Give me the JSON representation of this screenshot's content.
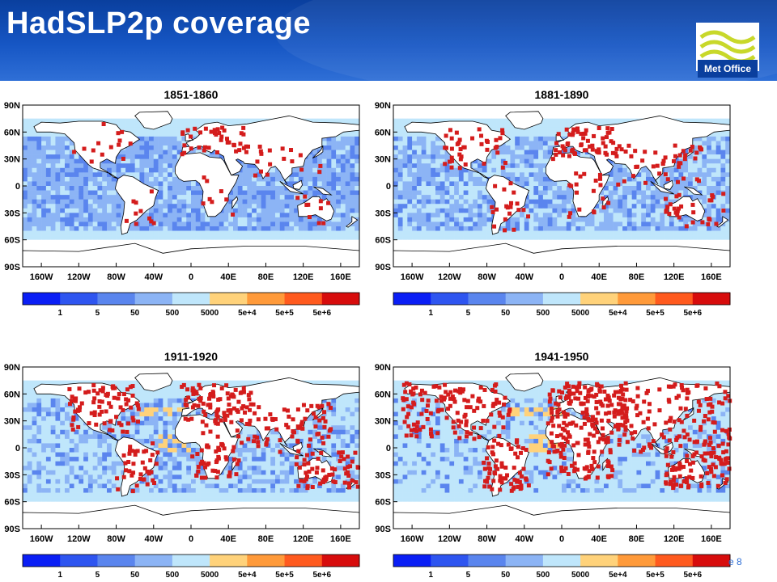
{
  "slide": {
    "title": "HadSLP2p coverage",
    "logo_text": "Met Office",
    "page_label": "e 8"
  },
  "colors": {
    "header_blue": "#0a3f9e",
    "station_red": "#d41c1c",
    "colorbar": [
      "#0a1ef5",
      "#2e55f0",
      "#5a85ee",
      "#8cb4f5",
      "#bfe6fb",
      "#ffd27a",
      "#ff9a3a",
      "#ff5a1e",
      "#d70c0c"
    ]
  },
  "chart_data": [
    {
      "type": "heatmap",
      "title": "1851-1860",
      "x_ticks": [
        "160W",
        "120W",
        "80W",
        "40W",
        "0",
        "40E",
        "80E",
        "120E",
        "160E"
      ],
      "y_ticks": [
        "90N",
        "60N",
        "30N",
        "0",
        "30S",
        "60S",
        "90S"
      ],
      "xlim": [
        -180,
        180
      ],
      "ylim": [
        -90,
        90
      ],
      "colorbar_labels": [
        "1",
        "5",
        "50",
        "500",
        "5000",
        "5e+4",
        "5e+5",
        "5e+6"
      ],
      "station_count_estimate": 110,
      "station_regions": [
        {
          "lon": [
            -125,
            -60
          ],
          "lat": [
            25,
            70
          ],
          "n": 14
        },
        {
          "lon": [
            -10,
            60
          ],
          "lat": [
            35,
            65
          ],
          "n": 40
        },
        {
          "lon": [
            60,
            140
          ],
          "lat": [
            10,
            45
          ],
          "n": 18
        },
        {
          "lon": [
            -70,
            -35
          ],
          "lat": [
            -45,
            5
          ],
          "n": 10
        },
        {
          "lon": [
            10,
            50
          ],
          "lat": [
            -35,
            10
          ],
          "n": 8
        },
        {
          "lon": [
            110,
            155
          ],
          "lat": [
            -45,
            -10
          ],
          "n": 10
        }
      ]
    },
    {
      "type": "heatmap",
      "title": "1881-1890",
      "x_ticks": [
        "160W",
        "120W",
        "80W",
        "40W",
        "0",
        "40E",
        "80E",
        "120E",
        "160E"
      ],
      "y_ticks": [
        "90N",
        "60N",
        "30N",
        "0",
        "30S",
        "60S",
        "90S"
      ],
      "xlim": [
        -180,
        180
      ],
      "ylim": [
        -90,
        90
      ],
      "colorbar_labels": [
        "1",
        "5",
        "50",
        "500",
        "5000",
        "5e+4",
        "5e+5",
        "5e+6"
      ],
      "station_count_estimate": 230,
      "station_regions": [
        {
          "lon": [
            -125,
            -60
          ],
          "lat": [
            20,
            65
          ],
          "n": 40
        },
        {
          "lon": [
            -10,
            60
          ],
          "lat": [
            30,
            65
          ],
          "n": 60
        },
        {
          "lon": [
            60,
            150
          ],
          "lat": [
            0,
            45
          ],
          "n": 45
        },
        {
          "lon": [
            -75,
            -35
          ],
          "lat": [
            -50,
            10
          ],
          "n": 20
        },
        {
          "lon": [
            5,
            50
          ],
          "lat": [
            -35,
            15
          ],
          "n": 20
        },
        {
          "lon": [
            110,
            180
          ],
          "lat": [
            -45,
            -5
          ],
          "n": 30
        }
      ]
    },
    {
      "type": "heatmap",
      "title": "1911-1920",
      "x_ticks": [
        "160W",
        "120W",
        "80W",
        "40W",
        "0",
        "40E",
        "80E",
        "120E",
        "160E"
      ],
      "y_ticks": [
        "90N",
        "60N",
        "30N",
        "0",
        "30S",
        "60S",
        "90S"
      ],
      "xlim": [
        -180,
        180
      ],
      "ylim": [
        -90,
        90
      ],
      "colorbar_labels": [
        "1",
        "5",
        "50",
        "500",
        "5000",
        "5e+4",
        "5e+5",
        "5e+6"
      ],
      "station_count_estimate": 400,
      "station_regions": [
        {
          "lon": [
            -130,
            -55
          ],
          "lat": [
            15,
            70
          ],
          "n": 80
        },
        {
          "lon": [
            -10,
            65
          ],
          "lat": [
            25,
            70
          ],
          "n": 90
        },
        {
          "lon": [
            60,
            150
          ],
          "lat": [
            -5,
            50
          ],
          "n": 70
        },
        {
          "lon": [
            -80,
            -35
          ],
          "lat": [
            -50,
            10
          ],
          "n": 40
        },
        {
          "lon": [
            0,
            55
          ],
          "lat": [
            -35,
            20
          ],
          "n": 50
        },
        {
          "lon": [
            110,
            180
          ],
          "lat": [
            -45,
            -5
          ],
          "n": 60
        }
      ]
    },
    {
      "type": "heatmap",
      "title": "1941-1950",
      "x_ticks": [
        "160W",
        "120W",
        "80W",
        "40W",
        "0",
        "40E",
        "80E",
        "120E",
        "160E"
      ],
      "y_ticks": [
        "90N",
        "60N",
        "30N",
        "0",
        "30S",
        "60S",
        "90S"
      ],
      "xlim": [
        -180,
        180
      ],
      "ylim": [
        -90,
        90
      ],
      "colorbar_labels": [
        "1",
        "5",
        "50",
        "500",
        "5000",
        "5e+4",
        "5e+5",
        "5e+6"
      ],
      "station_count_estimate": 650,
      "station_regions": [
        {
          "lon": [
            -170,
            -55
          ],
          "lat": [
            10,
            72
          ],
          "n": 130
        },
        {
          "lon": [
            -15,
            70
          ],
          "lat": [
            20,
            72
          ],
          "n": 150
        },
        {
          "lon": [
            60,
            180
          ],
          "lat": [
            -5,
            72
          ],
          "n": 130
        },
        {
          "lon": [
            -85,
            -35
          ],
          "lat": [
            -50,
            10
          ],
          "n": 70
        },
        {
          "lon": [
            -15,
            55
          ],
          "lat": [
            -35,
            20
          ],
          "n": 90
        },
        {
          "lon": [
            110,
            180
          ],
          "lat": [
            -45,
            -5
          ],
          "n": 80
        }
      ]
    }
  ]
}
